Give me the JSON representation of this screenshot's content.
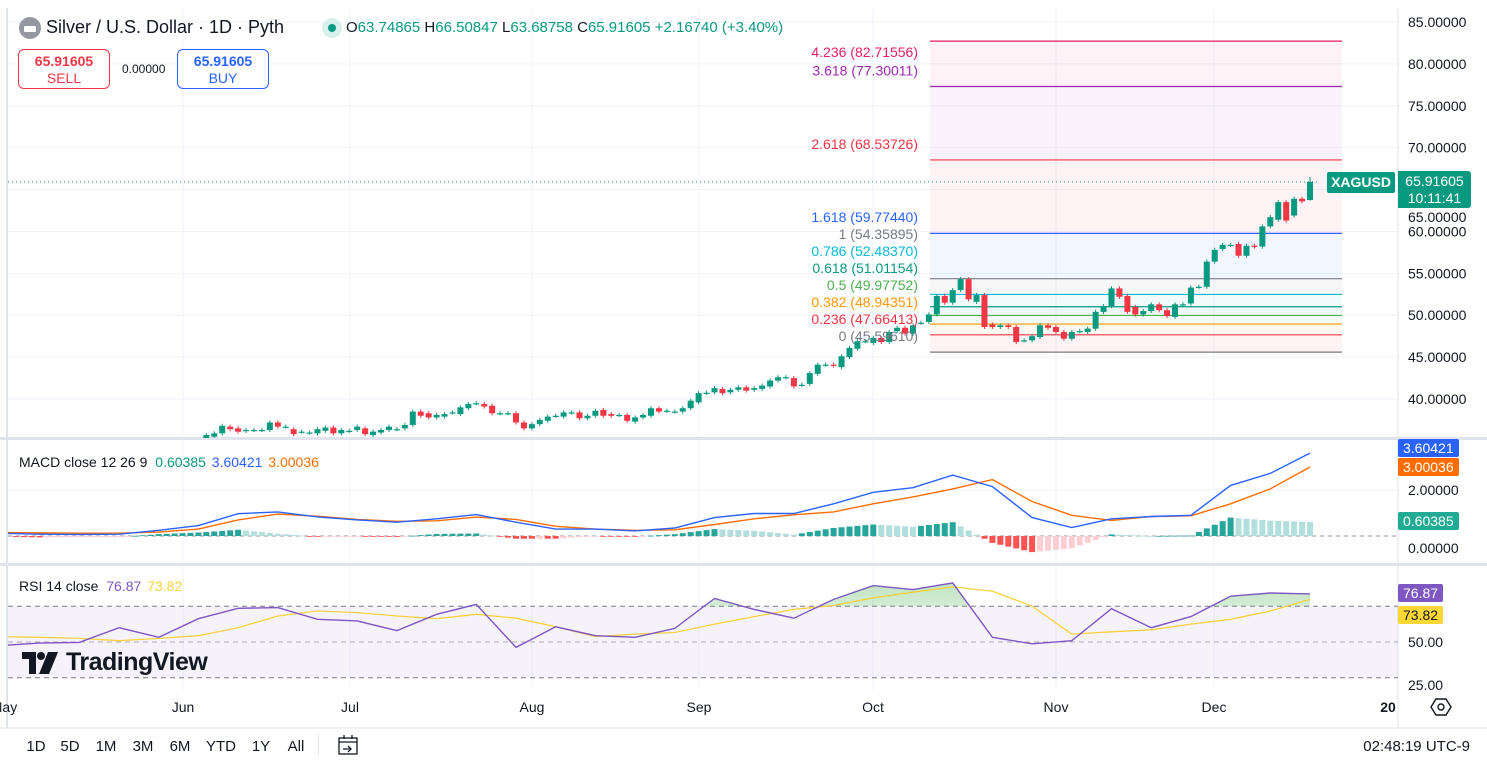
{
  "header": {
    "title": "Silver / U.S. Dollar · 1D · Pyth",
    "o_label": "O",
    "o": "63.74865",
    "h_label": "H",
    "h": "66.50847",
    "l_label": "L",
    "l": "63.68758",
    "c_label": "C",
    "c": "65.91605",
    "change": "+2.16740 (+3.40%)",
    "icon": "silver-bar-icon",
    "status": "market-open-dot"
  },
  "trade": {
    "sell_price": "65.91605",
    "sell_label": "SELL",
    "spread": "0.00000",
    "buy_price": "65.91605",
    "buy_label": "BUY"
  },
  "last_price": {
    "symbol": "XAGUSD",
    "price": "65.91605",
    "countdown": "10:11:41"
  },
  "macd_pane": {
    "title": "MACD close 12 26 9",
    "hist_value": "0.60385",
    "macd_value": "3.60421",
    "signal_value": "3.00036",
    "axis_labels": [
      "2.00000",
      "0.00000"
    ]
  },
  "rsi_pane": {
    "title": "RSI 14 close",
    "rsi_value": "76.87",
    "ma_value": "73.82",
    "axis_labels": [
      "50.00",
      "25.00"
    ]
  },
  "time_axis": {
    "labels": [
      "May",
      "Jun",
      "Jul",
      "Aug",
      "Sep",
      "Oct",
      "Nov",
      "Dec",
      "20"
    ],
    "settings_icon": "settings-hexagon-icon"
  },
  "toolbar": {
    "ranges": [
      "1D",
      "5D",
      "1M",
      "3M",
      "6M",
      "YTD",
      "1Y",
      "All"
    ],
    "date_range_icon": "calendar-goto-icon",
    "clock": "02:48:19 UTC-9"
  },
  "logo": "TradingView",
  "colors": {
    "up": "#089981",
    "down": "#f23645",
    "macd": "#2962ff",
    "signal": "#ff6d00",
    "rsi": "#7e57c2",
    "rsi_ma": "#f7d23e",
    "hist_up_strong": "#26a69a",
    "hist_up_weak": "#b2dfdb",
    "hist_down_strong": "#ff5252",
    "hist_down_weak": "#ffcdd2"
  },
  "chart_data": {
    "type": "candlestick",
    "symbol": "XAGUSD",
    "interval": "1D",
    "price_axis": {
      "ticks": [
        "85.00000",
        "80.00000",
        "75.00000",
        "70.00000",
        "65.00000",
        "60.00000",
        "55.00000",
        "50.00000",
        "45.00000",
        "40.00000"
      ],
      "range": [
        35,
        85
      ]
    },
    "last": {
      "open": 63.74865,
      "high": 66.50847,
      "low": 63.68758,
      "close": 65.91605
    },
    "candles_format": [
      "open",
      "close"
    ],
    "candles": [
      [
        35.1,
        35.7
      ],
      [
        35.5,
        35.9
      ],
      [
        35.9,
        36.8
      ],
      [
        36.7,
        36.4
      ],
      [
        36.5,
        36.1
      ],
      [
        36.2,
        36.3
      ],
      [
        36.3,
        36.3
      ],
      [
        36.3,
        36.3
      ],
      [
        36.3,
        37.2
      ],
      [
        37.2,
        36.7
      ],
      [
        36.7,
        36.7
      ],
      [
        36.4,
        35.8
      ],
      [
        36.1,
        36.1
      ],
      [
        36.0,
        36.0
      ],
      [
        35.9,
        36.4
      ],
      [
        36.2,
        36.6
      ],
      [
        36.6,
        35.9
      ],
      [
        35.9,
        36.3
      ],
      [
        36.2,
        36.2
      ],
      [
        36.3,
        36.7
      ],
      [
        36.5,
        35.8
      ],
      [
        35.7,
        36.1
      ],
      [
        36.0,
        36.3
      ],
      [
        36.3,
        36.7
      ],
      [
        36.4,
        36.4
      ],
      [
        36.5,
        36.9
      ],
      [
        36.9,
        38.5
      ],
      [
        38.5,
        38.0
      ],
      [
        38.3,
        37.8
      ],
      [
        37.8,
        38.1
      ],
      [
        37.9,
        38.2
      ],
      [
        38.4,
        38.4
      ],
      [
        38.2,
        39.0
      ],
      [
        38.9,
        39.4
      ],
      [
        39.5,
        39.5
      ],
      [
        39.4,
        39.1
      ],
      [
        39.2,
        38.3
      ],
      [
        38.3,
        38.3
      ],
      [
        38.3,
        38.3
      ],
      [
        38.3,
        37.2
      ],
      [
        37.2,
        36.5
      ],
      [
        36.5,
        37.0
      ],
      [
        37.0,
        37.5
      ],
      [
        37.4,
        37.9
      ],
      [
        38.0,
        38.0
      ],
      [
        37.9,
        38.4
      ],
      [
        38.4,
        38.4
      ],
      [
        38.4,
        37.7
      ],
      [
        37.7,
        38.0
      ],
      [
        38.0,
        38.6
      ],
      [
        38.7,
        38.0
      ],
      [
        38.2,
        38.0
      ],
      [
        38.1,
        38.1
      ],
      [
        38.1,
        37.4
      ],
      [
        37.3,
        37.8
      ],
      [
        37.8,
        38.1
      ],
      [
        38.0,
        38.9
      ],
      [
        38.9,
        38.5
      ],
      [
        38.6,
        38.6
      ],
      [
        38.5,
        38.5
      ],
      [
        38.5,
        38.9
      ],
      [
        38.9,
        39.8
      ],
      [
        39.6,
        40.7
      ],
      [
        40.75,
        40.75
      ],
      [
        40.8,
        41.3
      ],
      [
        41.2,
        40.7
      ],
      [
        40.8,
        41.1
      ],
      [
        41.1,
        41.4
      ],
      [
        41.4,
        41.0
      ],
      [
        41.1,
        41.3
      ],
      [
        41.2,
        41.6
      ],
      [
        41.5,
        42.2
      ],
      [
        42.2,
        42.6
      ],
      [
        42.6,
        42.6
      ],
      [
        42.5,
        41.5
      ],
      [
        41.7,
        41.7
      ],
      [
        41.8,
        43.1
      ],
      [
        43.0,
        44.1
      ],
      [
        44.1,
        44.1
      ],
      [
        44.1,
        44.0
      ],
      [
        43.8,
        45.1
      ],
      [
        45.0,
        46.1
      ],
      [
        46.0,
        46.9
      ],
      [
        46.9,
        46.9
      ],
      [
        46.7,
        47.3
      ],
      [
        47.3,
        46.8
      ],
      [
        46.8,
        48.0
      ],
      [
        48.1,
        48.5
      ],
      [
        48.5,
        47.8
      ],
      [
        47.8,
        48.8
      ],
      [
        49.1,
        49.1
      ],
      [
        49.2,
        50.1
      ],
      [
        50.1,
        52.3
      ],
      [
        52.3,
        51.5
      ],
      [
        51.5,
        53.0
      ],
      [
        53.0,
        54.3
      ],
      [
        54.3,
        51.9
      ],
      [
        51.6,
        52.4
      ],
      [
        52.4,
        48.6
      ],
      [
        48.9,
        48.6
      ],
      [
        48.6,
        48.8
      ],
      [
        48.8,
        48.6
      ],
      [
        48.6,
        46.8
      ],
      [
        47.0,
        47.0
      ],
      [
        47.0,
        47.5
      ],
      [
        47.4,
        48.8
      ],
      [
        48.8,
        48.5
      ],
      [
        48.6,
        48.0
      ],
      [
        48.0,
        47.2
      ],
      [
        47.2,
        48.0
      ],
      [
        48.1,
        48.1
      ],
      [
        48.0,
        48.4
      ],
      [
        48.4,
        50.4
      ],
      [
        50.4,
        51.1
      ],
      [
        51.1,
        53.2
      ],
      [
        53.2,
        52.2
      ],
      [
        52.3,
        50.4
      ],
      [
        51.0,
        50.1
      ],
      [
        50.1,
        50.5
      ],
      [
        50.5,
        51.3
      ],
      [
        51.3,
        50.6
      ],
      [
        50.6,
        49.9
      ],
      [
        49.8,
        51.3
      ],
      [
        51.3,
        51.3
      ],
      [
        51.4,
        53.3
      ],
      [
        53.4,
        53.4
      ],
      [
        53.4,
        56.4
      ],
      [
        56.4,
        57.8
      ],
      [
        57.9,
        58.4
      ],
      [
        58.4,
        58.4
      ],
      [
        58.5,
        57.1
      ],
      [
        57.1,
        58.3
      ],
      [
        58.3,
        58.2
      ],
      [
        58.2,
        60.6
      ],
      [
        60.6,
        61.7
      ],
      [
        61.4,
        63.5
      ],
      [
        63.5,
        61.3
      ],
      [
        61.9,
        63.9
      ],
      [
        63.9,
        63.6
      ],
      [
        63.74865,
        65.91605
      ]
    ],
    "fib_levels": [
      {
        "ratio": "0",
        "value": 45.5961,
        "label": "0 (45.59610)",
        "color": "#787b86"
      },
      {
        "ratio": "0.236",
        "value": 47.66413,
        "label": "0.236 (47.66413)",
        "color": "#f23645"
      },
      {
        "ratio": "0.382",
        "value": 48.94351,
        "label": "0.382 (48.94351)",
        "color": "#ff9800"
      },
      {
        "ratio": "0.5",
        "value": 49.97752,
        "label": "0.5 (49.97752)",
        "color": "#4caf50"
      },
      {
        "ratio": "0.618",
        "value": 51.01154,
        "label": "0.618 (51.01154)",
        "color": "#089981"
      },
      {
        "ratio": "0.786",
        "value": 52.4837,
        "label": "0.786 (52.48370)",
        "color": "#00bcd4"
      },
      {
        "ratio": "1",
        "value": 54.35895,
        "label": "1 (54.35895)",
        "color": "#787b86"
      },
      {
        "ratio": "1.618",
        "value": 59.7744,
        "label": "1.618 (59.77440)",
        "color": "#2962ff"
      },
      {
        "ratio": "2.618",
        "value": 68.53726,
        "label": "2.618 (68.53726)",
        "color": "#f23645"
      },
      {
        "ratio": "3.618",
        "value": 77.30011,
        "label": "3.618 (77.30011)",
        "color": "#9c27b0"
      },
      {
        "ratio": "4.236",
        "value": 82.71556,
        "label": "4.236 (82.71556)",
        "color": "#e91e63"
      }
    ],
    "macd": {
      "sample_every_bars": 5,
      "macd": [
        0.12,
        0.08,
        0.07,
        0.08,
        0.25,
        0.45,
        0.97,
        1.05,
        0.83,
        0.7,
        0.6,
        0.75,
        0.93,
        0.6,
        0.3,
        0.3,
        0.22,
        0.35,
        0.8,
        0.98,
        0.98,
        1.4,
        1.9,
        2.1,
        2.65,
        2.15,
        0.8,
        0.37,
        0.75,
        0.85,
        0.9,
        2.2,
        2.72,
        3.60421
      ],
      "signal": [
        0.15,
        0.14,
        0.12,
        0.12,
        0.17,
        0.3,
        0.7,
        0.95,
        0.86,
        0.72,
        0.64,
        0.66,
        0.82,
        0.72,
        0.42,
        0.3,
        0.25,
        0.27,
        0.5,
        0.75,
        0.92,
        1.05,
        1.4,
        1.7,
        2.05,
        2.45,
        1.5,
        0.9,
        0.68,
        0.85,
        0.88,
        1.4,
        2.05,
        3.00036
      ],
      "range": [
        -1.2,
        4.2
      ]
    },
    "rsi": {
      "sample_every_bars": 5,
      "rsi": [
        48,
        49.4,
        49.8,
        58,
        52.6,
        63,
        68.8,
        69.2,
        62.7,
        61.8,
        56.3,
        65.5,
        71,
        47,
        58.5,
        53.5,
        52.6,
        57.6,
        74.3,
        68.2,
        63.3,
        73.8,
        81.5,
        79.3,
        83,
        52.6,
        49,
        50.7,
        68.6,
        58,
        64.2,
        75.6,
        77.4,
        76.87
      ],
      "ma": [
        53,
        52.6,
        52,
        50.7,
        52,
        53.5,
        58,
        64.5,
        67.3,
        66.4,
        64.5,
        63,
        65.5,
        63.3,
        58.5,
        53,
        54.4,
        55.3,
        60,
        64.2,
        68.2,
        70.4,
        74.7,
        77.8,
        80.8,
        78.4,
        70,
        54.4,
        55.7,
        56.8,
        60,
        62.7,
        67.3,
        73.82
      ],
      "bands": [
        70,
        50,
        30
      ],
      "range": [
        22,
        93
      ]
    }
  }
}
